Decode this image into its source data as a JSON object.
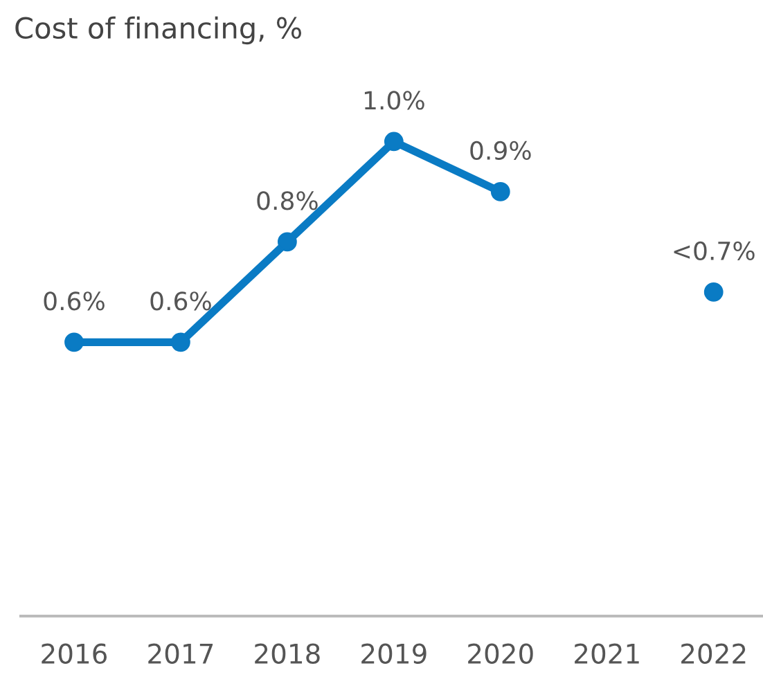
{
  "chart_data": {
    "type": "line",
    "title": "Cost of financing, %",
    "categories": [
      "2016",
      "2017",
      "2018",
      "2019",
      "2020",
      "2021",
      "2022"
    ],
    "series": [
      {
        "color": "#0a7bc4",
        "values": [
          0.6,
          0.6,
          0.8,
          1.0,
          0.9,
          null,
          0.7
        ],
        "value_labels": [
          "0.6%",
          "0.6%",
          "0.8%",
          "1.0%",
          "0.9%",
          null,
          "<0.7%"
        ]
      }
    ],
    "marker": "circle",
    "line_style": "solid",
    "grid": false,
    "legend": false,
    "tick_labels": "x"
  }
}
